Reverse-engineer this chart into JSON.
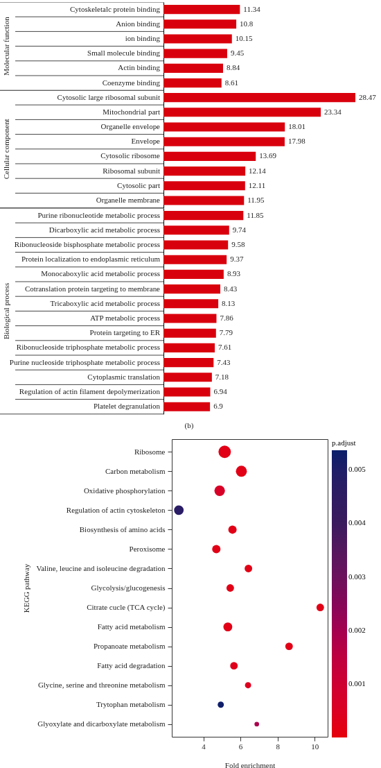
{
  "chart_data": [
    {
      "type": "bar",
      "orientation": "horizontal",
      "color": "#d9000d",
      "data_labels": true,
      "ylabel": "Molecular function",
      "categories": [
        "Cytoskeletalc protein binding",
        "Anion binding",
        "ion binding",
        "Small molecule binding",
        "Actin binding",
        "Coenzyme binding"
      ],
      "values": [
        11.34,
        10.8,
        10.15,
        9.45,
        8.84,
        8.61
      ]
    },
    {
      "type": "bar",
      "orientation": "horizontal",
      "color": "#d9000d",
      "data_labels": true,
      "ylabel": "Cellular component",
      "categories": [
        "Cytosolic large ribosomal subunit",
        "Mitochondrial part",
        "Organelle envelope",
        "Envelope",
        "Cytosolic ribosome",
        "Ribosomal subunit",
        "Cytosolic part",
        "Organelle membrane"
      ],
      "values": [
        28.47,
        23.34,
        18.01,
        17.98,
        13.69,
        12.14,
        12.11,
        11.95
      ]
    },
    {
      "type": "bar",
      "orientation": "horizontal",
      "color": "#d9000d",
      "data_labels": true,
      "ylabel": "Biological process",
      "categories": [
        "Purine ribonucleotide metabolic process",
        "Dicarboxylic acid metabolic process",
        "Ribonucleoside bisphosphate metabolic process",
        "Protein localization to endoplasmic reticulum",
        "Monocaboxylic acid metabolic process",
        "Cotranslation protein targeting to membrane",
        "Tricaboxylic acid metabolic process",
        "ATP metabolic process",
        "Protein targeting to ER",
        "Ribonucleoside triphosphate metabolic process",
        "Purine nucleoside triphosphate metabolic process",
        "Cytoplasmic translation",
        "Regulation of actin filament depolymerization",
        "Platelet degranulation"
      ],
      "values": [
        11.85,
        9.74,
        9.58,
        9.37,
        8.93,
        8.43,
        8.13,
        7.86,
        7.79,
        7.61,
        7.43,
        7.18,
        6.94,
        6.9
      ],
      "annotations": [
        "(b)"
      ]
    },
    {
      "type": "bubble",
      "orientation": "horizontal",
      "xlabel": "Fold enrichment",
      "ylabel": "KEGG pathway",
      "clabel": "p.adjust",
      "categories": [
        "Ribosome",
        "Carbon metabolism",
        "Oxidative phosphorylation",
        "Regulation of actin cytoskeleton",
        "Biosynthesis of amino acids",
        "Peroxisome",
        "Valine, leucine and isoleucine degradation",
        "Glycolysis/glucogenesis",
        "Citrate cucle (TCA cycle)",
        "Fatty acid metabolism",
        "Propanoate metabolism",
        "Fatty acid degradation",
        "Glycine, serine and threonine metabolism",
        "Trytophan metabolism",
        "Glyoxylate and dicarboxylate metabolism"
      ],
      "values": [
        5.15,
        6.05,
        4.88,
        2.68,
        5.57,
        4.7,
        6.43,
        5.45,
        10.3,
        5.32,
        8.62,
        5.65,
        6.41,
        4.94,
        6.88
      ],
      "sizes": [
        1,
        0.79,
        0.72,
        0.6,
        0.45,
        0.45,
        0.37,
        0.37,
        0.37,
        0.52,
        0.37,
        0.37,
        0.25,
        0.25,
        0.14
      ],
      "cvalues": [
        0.0002,
        0.0002,
        0.0006,
        0.0047,
        0.0002,
        0.0002,
        0.0002,
        0.0002,
        0.0002,
        0.0002,
        0.0002,
        0.0003,
        0.0004,
        0.0053,
        0.0019
      ],
      "clim": [
        1e-05,
        0.00536
      ],
      "cticks": [
        0.001,
        0.002,
        0.003,
        0.004,
        0.005
      ],
      "xlim": [
        2.3,
        10.7
      ],
      "xticks": [
        4,
        6,
        8,
        10
      ]
    }
  ]
}
